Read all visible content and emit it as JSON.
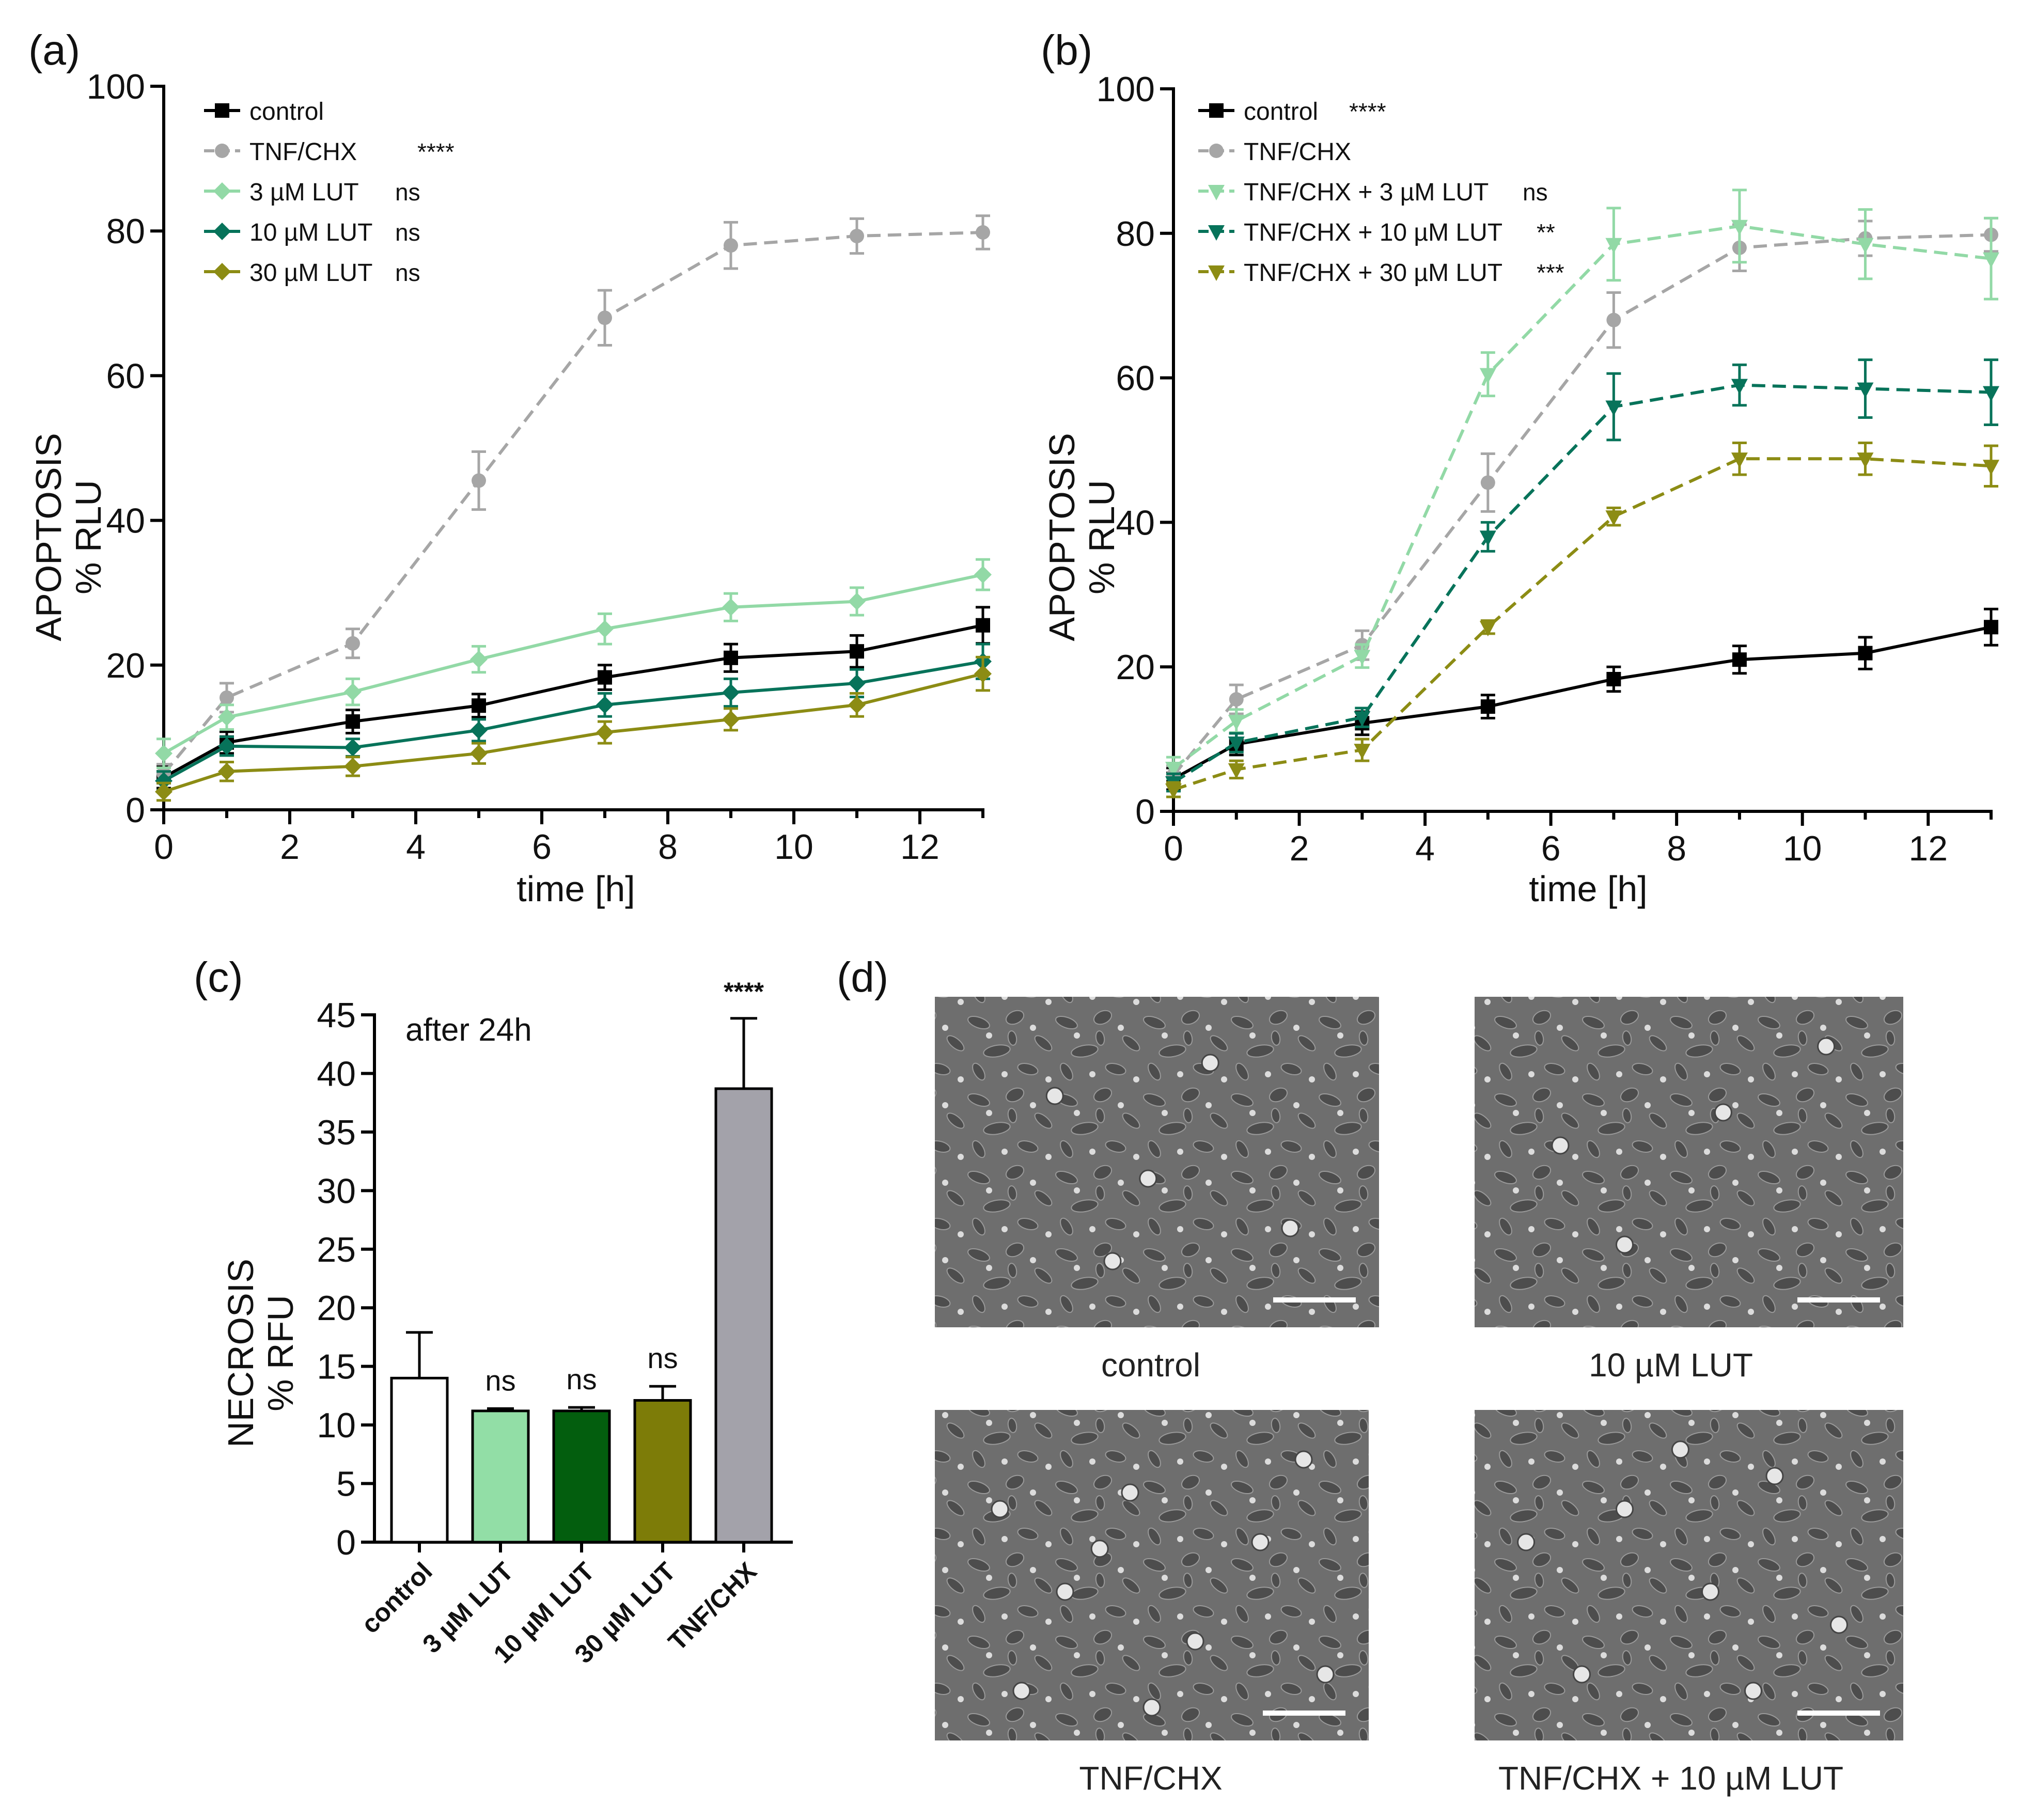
{
  "colors": {
    "control": "#000000",
    "tnf_chx": "#a6a6a6",
    "lut3": "#92d9a6",
    "lut10": "#07735a",
    "lut30": "#8c8c14",
    "bar_control": "#ffffff",
    "bar_lut3": "#92dea6",
    "bar_lut10": "#035e0e",
    "bar_lut30": "#7d7c08",
    "bar_tnf": "#a3a2aa",
    "micrograph_bg": "#6e6e6e"
  },
  "panel_labels": {
    "a": "(a)",
    "b": "(b)",
    "c": "(c)",
    "d": "(d)"
  },
  "chart_data": [
    {
      "id": "a",
      "type": "line",
      "xlabel": "time [h]",
      "ylabel_line1": "APOPTOSIS",
      "ylabel_line2": "% RLU",
      "xlim": [
        0,
        13
      ],
      "ylim": [
        0,
        100
      ],
      "xticks": [
        0,
        2,
        4,
        6,
        8,
        10,
        12
      ],
      "yticks": [
        0,
        20,
        40,
        60,
        80,
        100
      ],
      "legend_position": "top-left",
      "series": [
        {
          "name": "control",
          "significance": "",
          "color_key": "control",
          "dash": false,
          "marker": "square",
          "x": [
            0,
            1,
            3,
            5,
            7,
            9,
            11,
            13
          ],
          "y": [
            4.5,
            9.3,
            12.2,
            14.4,
            18.3,
            21.0,
            21.9,
            25.5
          ],
          "err": [
            1.5,
            1.5,
            1.6,
            1.6,
            1.7,
            1.9,
            2.2,
            2.5
          ]
        },
        {
          "name": "TNF/CHX",
          "significance": "****",
          "color_key": "tnf_chx",
          "dash": true,
          "marker": "circle",
          "x": [
            0,
            1,
            3,
            5,
            7,
            9,
            11,
            13
          ],
          "y": [
            5.0,
            15.5,
            23.0,
            45.5,
            68.0,
            78.0,
            79.3,
            79.8
          ],
          "err": [
            1.3,
            2.0,
            2.0,
            4.0,
            3.8,
            3.2,
            2.4,
            2.3
          ]
        },
        {
          "name": "3 µM LUT",
          "significance": "ns",
          "color_key": "lut3",
          "dash": false,
          "marker": "diamond",
          "x": [
            0,
            1,
            3,
            5,
            7,
            9,
            11,
            13
          ],
          "y": [
            7.8,
            12.8,
            16.3,
            20.8,
            25.0,
            28.0,
            28.8,
            32.5
          ],
          "err": [
            2.0,
            1.7,
            1.8,
            1.8,
            2.1,
            1.9,
            1.9,
            2.1
          ]
        },
        {
          "name": "10 µM LUT",
          "significance": "ns",
          "color_key": "lut10",
          "dash": false,
          "marker": "diamond",
          "x": [
            0,
            1,
            3,
            5,
            7,
            9,
            11,
            13
          ],
          "y": [
            4.0,
            8.8,
            8.6,
            11.0,
            14.5,
            16.2,
            17.5,
            20.5
          ],
          "err": [
            1.3,
            1.3,
            1.2,
            1.5,
            1.6,
            1.9,
            1.9,
            2.4
          ]
        },
        {
          "name": "30 µM LUT",
          "significance": "ns",
          "color_key": "lut30",
          "dash": false,
          "marker": "diamond",
          "x": [
            0,
            1,
            3,
            5,
            7,
            9,
            11,
            13
          ],
          "y": [
            2.5,
            5.3,
            6.0,
            7.8,
            10.7,
            12.5,
            14.5,
            18.8
          ],
          "err": [
            1.2,
            1.3,
            1.3,
            1.4,
            1.5,
            1.5,
            1.6,
            2.3
          ]
        }
      ]
    },
    {
      "id": "b",
      "type": "line",
      "xlabel": "time [h]",
      "ylabel_line1": "APOPTOSIS",
      "ylabel_line2": "% RLU",
      "xlim": [
        0,
        13
      ],
      "ylim": [
        0,
        100
      ],
      "xticks": [
        0,
        2,
        4,
        6,
        8,
        10,
        12
      ],
      "yticks": [
        0,
        20,
        40,
        60,
        80,
        100
      ],
      "legend_position": "top-left",
      "series": [
        {
          "name": "control",
          "significance": "****",
          "color_key": "control",
          "dash": false,
          "marker": "square",
          "x": [
            0,
            1,
            3,
            5,
            7,
            9,
            11,
            13
          ],
          "y": [
            4.5,
            9.3,
            12.2,
            14.5,
            18.3,
            21.0,
            21.9,
            25.5
          ],
          "err": [
            1.5,
            1.5,
            1.6,
            1.6,
            1.7,
            1.9,
            2.2,
            2.5
          ]
        },
        {
          "name": "TNF/CHX",
          "significance": "",
          "color_key": "tnf_chx",
          "dash": true,
          "marker": "circle",
          "x": [
            0,
            1,
            3,
            5,
            7,
            9,
            11,
            13
          ],
          "y": [
            5.0,
            15.5,
            23.0,
            45.5,
            68.0,
            78.0,
            79.3,
            79.8
          ],
          "err": [
            1.3,
            2.0,
            2.0,
            4.0,
            3.8,
            3.2,
            2.4,
            2.3
          ]
        },
        {
          "name": "TNF/CHX + 3 µM LUT",
          "significance": "ns",
          "color_key": "lut3",
          "dash": true,
          "marker": "triangle-down",
          "x": [
            0,
            1,
            3,
            5,
            7,
            9,
            11,
            13
          ],
          "y": [
            6.0,
            12.5,
            21.5,
            60.5,
            78.5,
            81.0,
            78.5,
            76.5
          ],
          "err": [
            1.5,
            1.6,
            1.6,
            3.0,
            5.0,
            5.0,
            4.8,
            5.6
          ]
        },
        {
          "name": "TNF/CHX + 10 µM LUT",
          "significance": "**",
          "color_key": "lut10",
          "dash": true,
          "marker": "triangle-down",
          "x": [
            0,
            1,
            3,
            5,
            7,
            9,
            11,
            13
          ],
          "y": [
            4.0,
            9.5,
            13.0,
            38.0,
            56.0,
            59.0,
            58.5,
            58.0
          ],
          "err": [
            1.2,
            1.3,
            1.3,
            2.0,
            4.6,
            2.8,
            4.0,
            4.5
          ]
        },
        {
          "name": "TNF/CHX + 30 µM LUT",
          "significance": "***",
          "color_key": "lut30",
          "dash": true,
          "marker": "triangle-down",
          "x": [
            0,
            1,
            3,
            5,
            7,
            9,
            11,
            13
          ],
          "y": [
            3.0,
            5.8,
            8.5,
            25.5,
            40.8,
            48.8,
            48.8,
            47.8
          ],
          "err": [
            1.0,
            1.2,
            1.5,
            0.9,
            1.2,
            2.2,
            2.2,
            2.8
          ]
        }
      ]
    },
    {
      "id": "c",
      "type": "bar",
      "annotation": "after 24h",
      "ylabel_line1": "NECROSIS",
      "ylabel_line2": "% RFU",
      "ylim": [
        0,
        45
      ],
      "yticks": [
        0,
        5,
        10,
        15,
        20,
        25,
        30,
        35,
        40,
        45
      ],
      "categories": [
        "control",
        "3 µM LUT",
        "10 µM LUT",
        "30 µM LUT",
        "TNF/CHX"
      ],
      "values": [
        14.0,
        11.2,
        11.2,
        12.1,
        38.7
      ],
      "errors": [
        3.9,
        0.2,
        0.3,
        1.2,
        6.0
      ],
      "significance": [
        "",
        "ns",
        "ns",
        "ns",
        "****"
      ],
      "color_keys": [
        "bar_control",
        "bar_lut3",
        "bar_lut10",
        "bar_lut30",
        "bar_tnf"
      ]
    }
  ],
  "micrographs": [
    {
      "caption": "control"
    },
    {
      "caption": "10 µM LUT"
    },
    {
      "caption": "TNF/CHX"
    },
    {
      "caption": "TNF/CHX + 10 µM LUT"
    }
  ]
}
